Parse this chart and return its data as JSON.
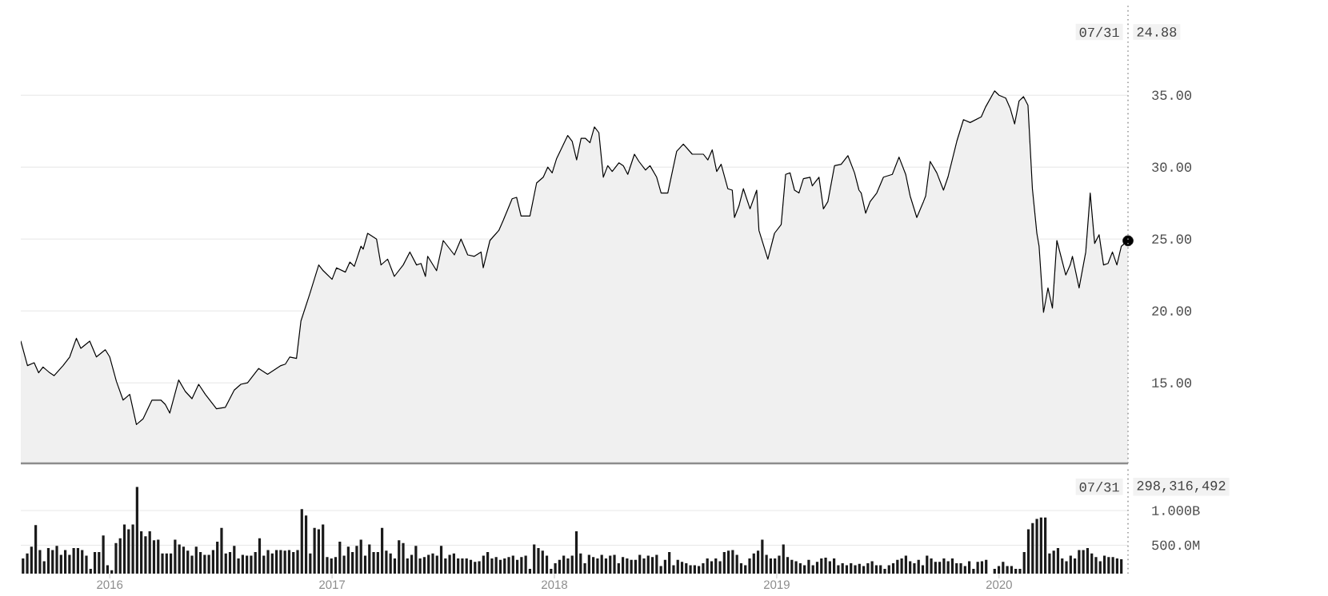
{
  "chart_data": [
    {
      "type": "area",
      "xlim": [
        2015.6,
        2020.58
      ],
      "ylim": [
        9.4,
        41.4
      ],
      "yticks": [
        {
          "value": 15,
          "label": "15.00"
        },
        {
          "value": 20,
          "label": "20.00"
        },
        {
          "value": 25,
          "label": "25.00"
        },
        {
          "value": 30,
          "label": "30.00"
        },
        {
          "value": 35,
          "label": "35.00"
        }
      ],
      "tick_labels": "y",
      "grid": "y",
      "ref_lines": [
        {
          "axis": "x",
          "value": 2020.58,
          "line_style": "dotted",
          "color": "#999999"
        }
      ],
      "annotations": [
        "07/31",
        "24.88"
      ],
      "series": [
        {
          "color": "#000000",
          "x": [
            2015.6,
            2015.63,
            2015.66,
            2015.68,
            2015.7,
            2015.73,
            2015.75,
            2015.79,
            2015.82,
            2015.85,
            2015.87,
            2015.91,
            2015.94,
            2015.98,
            2016.0,
            2016.03,
            2016.06,
            2016.09,
            2016.12,
            2016.15,
            2016.19,
            2016.23,
            2016.25,
            2016.27,
            2016.31,
            2016.34,
            2016.37,
            2016.4,
            2016.43,
            2016.48,
            2016.52,
            2016.56,
            2016.59,
            2016.62,
            2016.67,
            2016.71,
            2016.74,
            2016.77,
            2016.79,
            2016.81,
            2016.84,
            2016.86,
            2016.9,
            2016.94,
            2016.96,
            2017.0,
            2017.02,
            2017.06,
            2017.08,
            2017.1,
            2017.13,
            2017.14,
            2017.16,
            2017.2,
            2017.22,
            2017.25,
            2017.28,
            2017.32,
            2017.35,
            2017.38,
            2017.4,
            2017.42,
            2017.43,
            2017.47,
            2017.5,
            2017.55,
            2017.58,
            2017.61,
            2017.64,
            2017.67,
            2017.68,
            2017.71,
            2017.75,
            2017.77,
            2017.81,
            2017.83,
            2017.85,
            2017.89,
            2017.92,
            2017.95,
            2017.97,
            2017.99,
            2018.01,
            2018.06,
            2018.08,
            2018.1,
            2018.12,
            2018.14,
            2018.16,
            2018.18,
            2018.2,
            2018.22,
            2018.24,
            2018.26,
            2018.29,
            2018.31,
            2018.33,
            2018.36,
            2018.38,
            2018.41,
            2018.43,
            2018.46,
            2018.48,
            2018.51,
            2018.55,
            2018.58,
            2018.62,
            2018.67,
            2018.69,
            2018.71,
            2018.73,
            2018.75,
            2018.78,
            2018.8,
            2018.81,
            2018.83,
            2018.85,
            2018.88,
            2018.91,
            2018.92,
            2018.96,
            2018.99,
            2019.02,
            2019.04,
            2019.06,
            2019.08,
            2019.1,
            2019.12,
            2019.15,
            2019.16,
            2019.19,
            2019.21,
            2019.23,
            2019.26,
            2019.29,
            2019.32,
            2019.35,
            2019.37,
            2019.38,
            2019.4,
            2019.42,
            2019.45,
            2019.48,
            2019.52,
            2019.55,
            2019.58,
            2019.6,
            2019.63,
            2019.66,
            2019.67,
            2019.69,
            2019.72,
            2019.75,
            2019.77,
            2019.81,
            2019.84,
            2019.87,
            2019.92,
            2019.94,
            2019.98,
            2020.0,
            2020.03,
            2020.05,
            2020.07,
            2020.09,
            2020.11,
            2020.13,
            2020.15,
            2020.17,
            2020.18,
            2020.2,
            2020.22,
            2020.24,
            2020.26,
            2020.3,
            2020.32,
            2020.33,
            2020.36,
            2020.39,
            2020.41,
            2020.43,
            2020.45,
            2020.47,
            2020.49,
            2020.51,
            2020.53,
            2020.55,
            2020.58
          ],
          "values": [
            17.9,
            16.2,
            16.4,
            15.7,
            16.1,
            15.7,
            15.5,
            16.2,
            16.8,
            18.1,
            17.4,
            17.9,
            16.8,
            17.3,
            16.8,
            15.1,
            13.8,
            14.2,
            12.1,
            12.5,
            13.8,
            13.8,
            13.5,
            12.9,
            15.2,
            14.4,
            13.9,
            14.9,
            14.2,
            13.2,
            13.3,
            14.5,
            14.9,
            15.0,
            16.0,
            15.6,
            15.9,
            16.2,
            16.3,
            16.8,
            16.7,
            19.3,
            21.2,
            23.2,
            22.8,
            22.2,
            23.0,
            22.7,
            23.4,
            23.1,
            24.5,
            24.3,
            25.4,
            25.0,
            23.2,
            23.6,
            22.4,
            23.2,
            24.1,
            23.2,
            23.3,
            22.4,
            23.8,
            22.8,
            24.9,
            23.9,
            25.0,
            23.9,
            23.8,
            24.1,
            23.0,
            24.9,
            25.6,
            26.3,
            27.8,
            27.9,
            26.6,
            26.6,
            28.9,
            29.3,
            30.0,
            29.6,
            30.6,
            32.2,
            31.8,
            30.5,
            32.0,
            32.0,
            31.7,
            32.8,
            32.4,
            29.3,
            30.1,
            29.7,
            30.3,
            30.1,
            29.5,
            30.9,
            30.4,
            29.8,
            30.1,
            29.3,
            28.2,
            28.2,
            31.1,
            31.6,
            30.9,
            30.9,
            30.5,
            31.2,
            29.7,
            30.2,
            28.5,
            28.4,
            26.5,
            27.3,
            28.5,
            27.1,
            28.4,
            25.6,
            23.6,
            25.4,
            26.0,
            29.5,
            29.6,
            28.4,
            28.2,
            29.2,
            29.3,
            28.7,
            29.3,
            27.1,
            27.6,
            30.1,
            30.2,
            30.8,
            29.6,
            28.4,
            28.2,
            26.8,
            27.6,
            28.2,
            29.3,
            29.5,
            30.7,
            29.5,
            28.0,
            26.5,
            27.6,
            28.0,
            30.4,
            29.6,
            28.4,
            29.3,
            31.8,
            33.3,
            33.1,
            33.5,
            34.2,
            35.3,
            35.0,
            34.8,
            34.1,
            33.0,
            34.6,
            34.9,
            34.3,
            28.5,
            25.4,
            24.5,
            19.9,
            21.6,
            20.2,
            24.9,
            22.5,
            23.2,
            23.8,
            21.6,
            24.1,
            28.2,
            24.7,
            25.3,
            23.2,
            23.3,
            24.1,
            23.2,
            24.5,
            24.9
          ]
        },
        {
          "type": "scatter",
          "color": "#000000",
          "marker": "circle",
          "x": [
            2020.58
          ],
          "values": [
            24.88
          ]
        }
      ]
    },
    {
      "type": "bar",
      "xlim": [
        2015.6,
        2020.58
      ],
      "ylim": [
        90000000,
        1600000000
      ],
      "xticks": [
        2016,
        2017,
        2018,
        2019,
        2020
      ],
      "yticks": [
        {
          "value": 500000000,
          "label": "500.0M"
        },
        {
          "value": 1000000000,
          "label": "1.000B"
        }
      ],
      "grid": "y",
      "ref_lines": [
        {
          "axis": "x",
          "value": 2020.58,
          "line_style": "dotted",
          "color": "#999999"
        }
      ],
      "annotations": [
        "07/31",
        "298,316,492"
      ],
      "series": [
        {
          "color": "#1a1a1a",
          "x": [
            2015.61,
            2015.629,
            2015.648,
            2015.667,
            2015.686,
            2015.705,
            2015.724,
            2015.743,
            2015.762,
            2015.781,
            2015.8,
            2015.819,
            2015.838,
            2015.857,
            2015.876,
            2015.895,
            2015.914,
            2015.933,
            2015.952,
            2015.971,
            2015.99,
            2016.009,
            2016.028,
            2016.047,
            2016.066,
            2016.085,
            2016.104,
            2016.123,
            2016.142,
            2016.161,
            2016.18,
            2016.199,
            2016.218,
            2016.237,
            2016.256,
            2016.275,
            2016.294,
            2016.313,
            2016.332,
            2016.351,
            2016.37,
            2016.389,
            2016.408,
            2016.427,
            2016.446,
            2016.465,
            2016.484,
            2016.503,
            2016.522,
            2016.541,
            2016.56,
            2016.579,
            2016.598,
            2016.617,
            2016.636,
            2016.655,
            2016.674,
            2016.693,
            2016.712,
            2016.731,
            2016.75,
            2016.769,
            2016.788,
            2016.807,
            2016.826,
            2016.845,
            2016.864,
            2016.883,
            2016.902,
            2016.921,
            2016.94,
            2016.959,
            2016.978,
            2016.997,
            2017.016,
            2017.035,
            2017.054,
            2017.073,
            2017.092,
            2017.111,
            2017.13,
            2017.149,
            2017.168,
            2017.187,
            2017.206,
            2017.225,
            2017.244,
            2017.263,
            2017.282,
            2017.301,
            2017.32,
            2017.339,
            2017.358,
            2017.377,
            2017.396,
            2017.415,
            2017.434,
            2017.453,
            2017.472,
            2017.491,
            2017.51,
            2017.529,
            2017.548,
            2017.567,
            2017.586,
            2017.605,
            2017.624,
            2017.643,
            2017.662,
            2017.681,
            2017.7,
            2017.719,
            2017.738,
            2017.757,
            2017.776,
            2017.795,
            2017.814,
            2017.833,
            2017.852,
            2017.871,
            2017.89,
            2017.909,
            2017.928,
            2017.947,
            2017.966,
            2017.985,
            2018.004,
            2018.023,
            2018.042,
            2018.061,
            2018.08,
            2018.099,
            2018.118,
            2018.137,
            2018.156,
            2018.175,
            2018.194,
            2018.213,
            2018.232,
            2018.251,
            2018.27,
            2018.289,
            2018.308,
            2018.327,
            2018.346,
            2018.365,
            2018.384,
            2018.403,
            2018.422,
            2018.441,
            2018.46,
            2018.479,
            2018.498,
            2018.517,
            2018.536,
            2018.555,
            2018.574,
            2018.593,
            2018.612,
            2018.631,
            2018.65,
            2018.669,
            2018.688,
            2018.707,
            2018.726,
            2018.745,
            2018.764,
            2018.783,
            2018.802,
            2018.821,
            2018.84,
            2018.859,
            2018.878,
            2018.897,
            2018.916,
            2018.935,
            2018.954,
            2018.973,
            2018.992,
            2019.011,
            2019.03,
            2019.049,
            2019.068,
            2019.087,
            2019.106,
            2019.125,
            2019.144,
            2019.163,
            2019.182,
            2019.201,
            2019.22,
            2019.239,
            2019.258,
            2019.277,
            2019.296,
            2019.315,
            2019.334,
            2019.353,
            2019.372,
            2019.391,
            2019.41,
            2019.429,
            2019.448,
            2019.467,
            2019.486,
            2019.505,
            2019.524,
            2019.543,
            2019.562,
            2019.581,
            2019.6,
            2019.619,
            2019.638,
            2019.657,
            2019.676,
            2019.695,
            2019.714,
            2019.733,
            2019.752,
            2019.771,
            2019.79,
            2019.809,
            2019.828,
            2019.847,
            2019.866,
            2019.885,
            2019.904,
            2019.923,
            2019.942,
            2019.961,
            2019.98,
            2019.999,
            2020.018,
            2020.037,
            2020.056,
            2020.075,
            2020.094,
            2020.113,
            2020.132,
            2020.151,
            2020.17,
            2020.189,
            2020.208,
            2020.227,
            2020.246,
            2020.265,
            2020.284,
            2020.303,
            2020.322,
            2020.341,
            2020.36,
            2020.379,
            2020.398,
            2020.417,
            2020.436,
            2020.455,
            2020.474,
            2020.493,
            2020.512,
            2020.531,
            2020.55
          ],
          "values": [
            310000000,
            380000000,
            480000000,
            790000000,
            430000000,
            270000000,
            460000000,
            430000000,
            490000000,
            360000000,
            430000000,
            360000000,
            460000000,
            460000000,
            430000000,
            350000000,
            160000000,
            400000000,
            400000000,
            640000000,
            210000000,
            140000000,
            530000000,
            600000000,
            800000000,
            730000000,
            800000000,
            1340000000,
            700000000,
            630000000,
            700000000,
            570000000,
            580000000,
            380000000,
            380000000,
            380000000,
            580000000,
            510000000,
            480000000,
            420000000,
            350000000,
            480000000,
            400000000,
            360000000,
            360000000,
            430000000,
            550000000,
            750000000,
            380000000,
            400000000,
            490000000,
            310000000,
            360000000,
            350000000,
            350000000,
            400000000,
            600000000,
            350000000,
            430000000,
            380000000,
            430000000,
            430000000,
            420000000,
            430000000,
            400000000,
            430000000,
            1020000000,
            930000000,
            380000000,
            750000000,
            730000000,
            800000000,
            330000000,
            310000000,
            330000000,
            550000000,
            350000000,
            480000000,
            400000000,
            490000000,
            580000000,
            350000000,
            510000000,
            400000000,
            400000000,
            750000000,
            420000000,
            380000000,
            310000000,
            570000000,
            530000000,
            310000000,
            360000000,
            490000000,
            310000000,
            330000000,
            360000000,
            380000000,
            350000000,
            490000000,
            310000000,
            360000000,
            380000000,
            310000000,
            310000000,
            310000000,
            290000000,
            260000000,
            270000000,
            350000000,
            400000000,
            310000000,
            330000000,
            290000000,
            310000000,
            330000000,
            350000000,
            290000000,
            330000000,
            350000000,
            160000000,
            510000000,
            460000000,
            420000000,
            350000000,
            160000000,
            240000000,
            290000000,
            350000000,
            310000000,
            350000000,
            700000000,
            380000000,
            240000000,
            360000000,
            330000000,
            310000000,
            360000000,
            310000000,
            350000000,
            360000000,
            240000000,
            330000000,
            310000000,
            290000000,
            290000000,
            360000000,
            310000000,
            350000000,
            330000000,
            360000000,
            200000000,
            290000000,
            400000000,
            210000000,
            290000000,
            260000000,
            240000000,
            210000000,
            210000000,
            200000000,
            240000000,
            310000000,
            270000000,
            310000000,
            270000000,
            400000000,
            420000000,
            430000000,
            360000000,
            240000000,
            210000000,
            310000000,
            380000000,
            420000000,
            580000000,
            360000000,
            310000000,
            310000000,
            350000000,
            510000000,
            330000000,
            290000000,
            270000000,
            240000000,
            210000000,
            290000000,
            210000000,
            260000000,
            310000000,
            320000000,
            270000000,
            310000000,
            210000000,
            240000000,
            210000000,
            240000000,
            210000000,
            230000000,
            200000000,
            240000000,
            270000000,
            210000000,
            210000000,
            160000000,
            210000000,
            240000000,
            290000000,
            310000000,
            350000000,
            270000000,
            240000000,
            290000000,
            210000000,
            350000000,
            310000000,
            260000000,
            260000000,
            310000000,
            270000000,
            310000000,
            240000000,
            240000000,
            200000000,
            270000000,
            160000000,
            260000000,
            270000000,
            290000000,
            null,
            160000000,
            200000000,
            260000000,
            200000000,
            200000000,
            160000000,
            160000000,
            400000000,
            730000000,
            820000000,
            880000000,
            900000000,
            900000000,
            380000000,
            420000000,
            460000000,
            310000000,
            270000000,
            350000000,
            310000000,
            430000000,
            430000000,
            460000000,
            380000000,
            330000000,
            270000000,
            350000000,
            330000000,
            330000000,
            310000000,
            298316492
          ]
        }
      ]
    }
  ]
}
